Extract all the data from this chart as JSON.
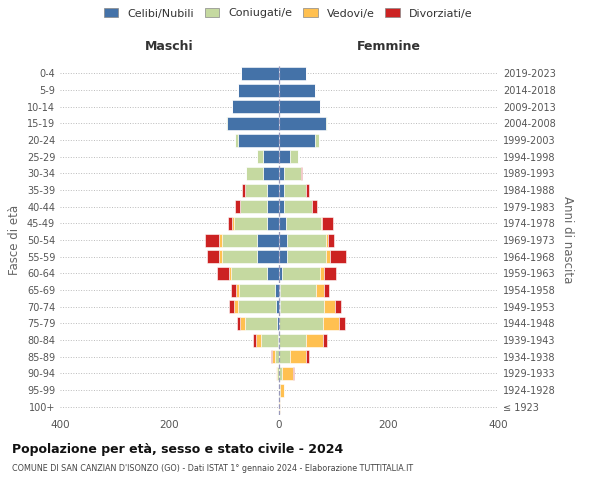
{
  "age_groups": [
    "100+",
    "95-99",
    "90-94",
    "85-89",
    "80-84",
    "75-79",
    "70-74",
    "65-69",
    "60-64",
    "55-59",
    "50-54",
    "45-49",
    "40-44",
    "35-39",
    "30-34",
    "25-29",
    "20-24",
    "15-19",
    "10-14",
    "5-9",
    "0-4"
  ],
  "birth_years": [
    "≤ 1923",
    "1924-1928",
    "1929-1933",
    "1934-1938",
    "1939-1943",
    "1944-1948",
    "1949-1953",
    "1954-1958",
    "1959-1963",
    "1964-1968",
    "1969-1973",
    "1974-1978",
    "1979-1983",
    "1984-1988",
    "1989-1993",
    "1994-1998",
    "1999-2003",
    "2004-2008",
    "2009-2013",
    "2014-2018",
    "2019-2023"
  ],
  "maschi": {
    "celibi": [
      0,
      0,
      0,
      0,
      2,
      3,
      5,
      8,
      22,
      40,
      40,
      22,
      22,
      22,
      30,
      30,
      75,
      95,
      85,
      75,
      70
    ],
    "coniugati": [
      0,
      0,
      3,
      8,
      30,
      60,
      70,
      65,
      65,
      65,
      65,
      60,
      50,
      40,
      30,
      10,
      5,
      2,
      0,
      0,
      0
    ],
    "vedovi": [
      0,
      0,
      2,
      5,
      10,
      8,
      8,
      5,
      5,
      5,
      5,
      3,
      0,
      0,
      0,
      0,
      0,
      0,
      0,
      0,
      0
    ],
    "divorziati": [
      0,
      0,
      0,
      2,
      5,
      5,
      8,
      10,
      22,
      22,
      25,
      8,
      8,
      5,
      0,
      0,
      0,
      0,
      0,
      0,
      0
    ]
  },
  "femmine": {
    "nubili": [
      0,
      0,
      0,
      0,
      0,
      0,
      2,
      2,
      5,
      15,
      15,
      12,
      10,
      10,
      10,
      20,
      65,
      85,
      75,
      65,
      50
    ],
    "coniugate": [
      0,
      2,
      5,
      20,
      50,
      80,
      80,
      65,
      70,
      70,
      70,
      65,
      50,
      40,
      30,
      15,
      8,
      3,
      0,
      0,
      0
    ],
    "vedove": [
      2,
      8,
      20,
      30,
      30,
      30,
      20,
      15,
      8,
      8,
      5,
      2,
      0,
      0,
      0,
      0,
      0,
      0,
      0,
      0,
      0
    ],
    "divorziate": [
      0,
      0,
      2,
      5,
      8,
      10,
      12,
      10,
      22,
      30,
      10,
      20,
      10,
      5,
      2,
      0,
      0,
      0,
      0,
      0,
      0
    ]
  },
  "colors": {
    "celibi": "#4472a8",
    "coniugati": "#c5d9a0",
    "vedovi": "#ffc050",
    "divorziati": "#cc2222"
  },
  "xlim": 400,
  "title": "Popolazione per età, sesso e stato civile - 2024",
  "subtitle": "COMUNE DI SAN CANZIAN D'ISONZO (GO) - Dati ISTAT 1° gennaio 2024 - Elaborazione TUTTITALIA.IT",
  "ylabel_left": "Fasce di età",
  "ylabel_right": "Anni di nascita",
  "xlabel_left": "Maschi",
  "xlabel_right": "Femmine",
  "background_color": "#ffffff",
  "grid_color": "#cccccc"
}
